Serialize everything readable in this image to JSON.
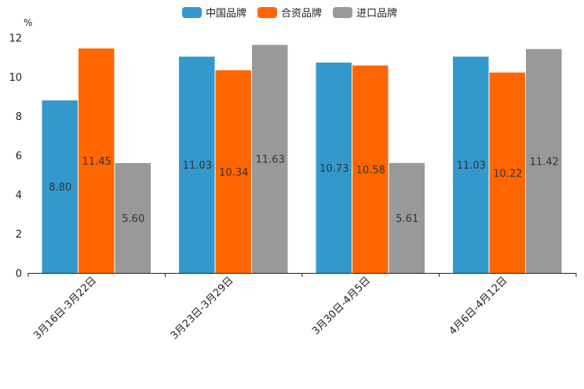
{
  "chart_data": {
    "type": "bar",
    "unit": "%",
    "categories": [
      "3月16日-3月22日",
      "3月23日-3月29日",
      "3月30日-4月5日",
      "4月6日-4月12日"
    ],
    "series": [
      {
        "name": "中国品牌",
        "color": "#3399cc",
        "values": [
          8.8,
          11.03,
          10.73,
          11.03
        ],
        "labels": [
          "8.80",
          "11.03",
          "10.73",
          "11.03"
        ]
      },
      {
        "name": "合资品牌",
        "color": "#ff6600",
        "values": [
          11.45,
          10.34,
          10.58,
          10.22
        ],
        "labels": [
          "11.45",
          "10.34",
          "10.58",
          "10.22"
        ]
      },
      {
        "name": "进口品牌",
        "color": "#999999",
        "values": [
          5.6,
          11.63,
          5.61,
          11.42
        ],
        "labels": [
          "5.60",
          "11.63",
          "5.61",
          "11.42"
        ]
      }
    ],
    "ylim": [
      0,
      12
    ],
    "yticks": [
      "0",
      "2",
      "4",
      "6",
      "8",
      "10",
      "12"
    ],
    "ytick_values": [
      0,
      2,
      4,
      6,
      8,
      10,
      12
    ],
    "legend_position": "top-center"
  }
}
